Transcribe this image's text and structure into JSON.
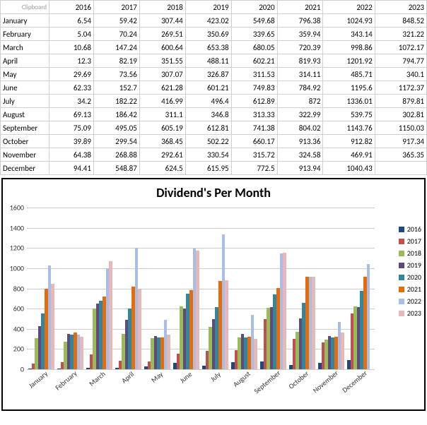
{
  "table": {
    "corner": "Clipboard",
    "years": [
      "2016",
      "2017",
      "2018",
      "2019",
      "2020",
      "2021",
      "2022",
      "2023"
    ],
    "months": [
      "January",
      "February",
      "March",
      "April",
      "May",
      "June",
      "July",
      "August",
      "September",
      "October",
      "November",
      "December"
    ],
    "values": [
      [
        "6.54",
        "59.42",
        "307.44",
        "423.02",
        "549.68",
        "796.38",
        "1024.93",
        "848.52"
      ],
      [
        "5.04",
        "70.24",
        "269.51",
        "350.69",
        "339.65",
        "359.94",
        "343.14",
        "321.22"
      ],
      [
        "10.68",
        "147.24",
        "600.64",
        "653.38",
        "680.05",
        "720.39",
        "998.86",
        "1072.17"
      ],
      [
        "12.3",
        "82.19",
        "351.55",
        "488.11",
        "602.21",
        "819.93",
        "1201.92",
        "794.77"
      ],
      [
        "29.69",
        "73.56",
        "307.07",
        "326.87",
        "311.53",
        "314.11",
        "485.71",
        "340.1"
      ],
      [
        "62.33",
        "152.7",
        "621.28",
        "601.21",
        "749.83",
        "784.92",
        "1195.6",
        "1172.37"
      ],
      [
        "34.2",
        "182.22",
        "416.99",
        "496.4",
        "612.89",
        "872",
        "1336.01",
        "879.81"
      ],
      [
        "69.13",
        "186.42",
        "311.1",
        "346.8",
        "313.33",
        "322.99",
        "539.75",
        "302.81"
      ],
      [
        "75.09",
        "495.05",
        "605.19",
        "612.81",
        "741.38",
        "804.02",
        "1143.76",
        "1150.03"
      ],
      [
        "39.89",
        "299.54",
        "368.45",
        "502.22",
        "660.17",
        "913.36",
        "912.82",
        "917.34"
      ],
      [
        "64.38",
        "268.88",
        "292.61",
        "330.54",
        "315.72",
        "324.58",
        "469.91",
        "365.35"
      ],
      [
        "94.41",
        "548.87",
        "624.5",
        "615.95",
        "772.5",
        "913.94",
        "1040.43",
        ""
      ]
    ]
  },
  "chart": {
    "type": "bar",
    "title": "Dividend's Per Month",
    "ymax": 1600,
    "ytick_step": 200,
    "x_labels": [
      "January",
      "February",
      "March",
      "April",
      "May",
      "June",
      "July",
      "August",
      "September",
      "October",
      "November",
      "December"
    ],
    "series": [
      {
        "label": "2016",
        "color": "#1f497d"
      },
      {
        "label": "2017",
        "color": "#c0504d"
      },
      {
        "label": "2018",
        "color": "#9bbb59"
      },
      {
        "label": "2019",
        "color": "#604a7b"
      },
      {
        "label": "2020",
        "color": "#31859c"
      },
      {
        "label": "2021",
        "color": "#e46c0a"
      },
      {
        "label": "2022",
        "color": "#a9bde6"
      },
      {
        "label": "2023",
        "color": "#e6b8b7"
      }
    ],
    "data": [
      [
        6.54,
        5.04,
        10.68,
        12.3,
        29.69,
        62.33,
        34.2,
        69.13,
        75.09,
        39.89,
        64.38,
        94.41
      ],
      [
        59.42,
        70.24,
        147.24,
        82.19,
        73.56,
        152.7,
        182.22,
        186.42,
        495.05,
        299.54,
        268.88,
        548.87
      ],
      [
        307.44,
        269.51,
        600.64,
        351.55,
        307.07,
        621.28,
        416.99,
        311.1,
        605.19,
        368.45,
        292.61,
        624.5
      ],
      [
        423.02,
        350.69,
        653.38,
        488.11,
        326.87,
        601.21,
        496.4,
        346.8,
        612.81,
        502.22,
        330.54,
        615.95
      ],
      [
        549.68,
        339.65,
        680.05,
        602.21,
        311.53,
        749.83,
        612.89,
        313.33,
        741.38,
        660.17,
        315.72,
        772.5
      ],
      [
        796.38,
        359.94,
        720.39,
        819.93,
        314.11,
        784.92,
        872,
        322.99,
        804.02,
        913.36,
        324.58,
        913.94
      ],
      [
        1024.93,
        343.14,
        998.86,
        1201.92,
        485.71,
        1195.6,
        1336.01,
        539.75,
        1143.76,
        912.82,
        469.91,
        1040.43
      ],
      [
        848.52,
        321.22,
        1072.17,
        794.77,
        340.1,
        1172.37,
        879.81,
        302.81,
        1150.03,
        917.34,
        365.35,
        0
      ]
    ]
  }
}
